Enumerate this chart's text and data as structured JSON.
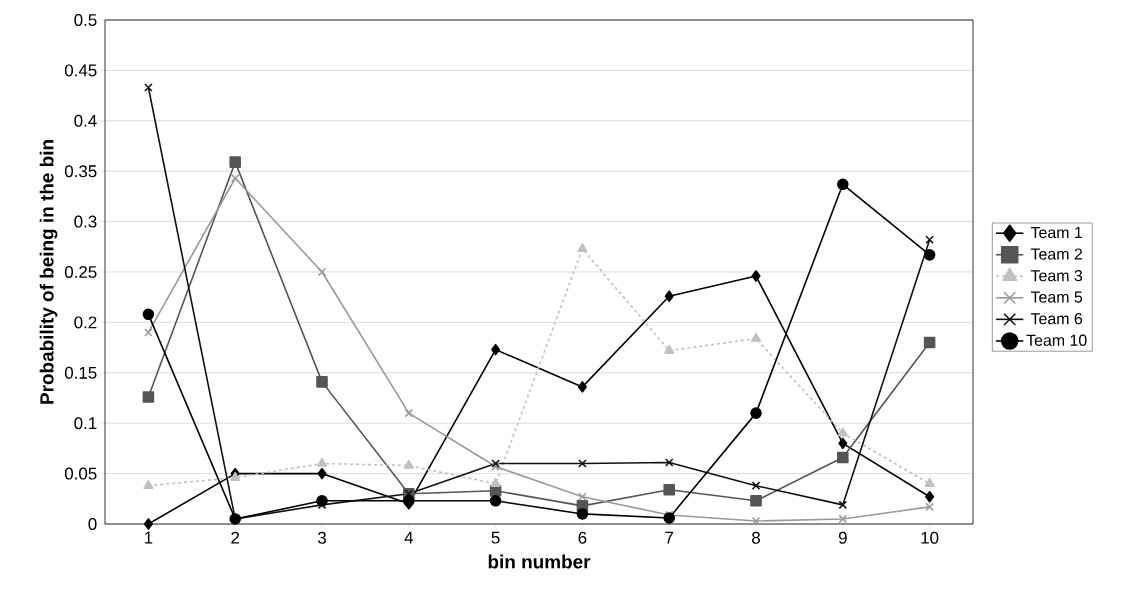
{
  "chart_data": {
    "type": "line",
    "xlabel": "bin number",
    "ylabel": "Probability of being in the bin",
    "categories": [
      "1",
      "2",
      "3",
      "4",
      "5",
      "6",
      "7",
      "8",
      "9",
      "10"
    ],
    "ylim": [
      0,
      0.5
    ],
    "yticks": [
      0,
      0.05,
      0.1,
      0.15,
      0.2,
      0.25,
      0.3,
      0.35,
      0.4,
      0.45,
      0.5
    ],
    "grid": "y",
    "legend": "right",
    "series": [
      {
        "name": "Team 1",
        "color": "#000000",
        "marker": "diamond",
        "line_style": "solid",
        "values": [
          0,
          0.05,
          0.05,
          0.02,
          0.173,
          0.136,
          0.226,
          0.246,
          0.08,
          0.027
        ]
      },
      {
        "name": "Team 2",
        "color": "#555555",
        "marker": "square",
        "line_style": "solid",
        "values": [
          0.126,
          0.359,
          0.141,
          0.03,
          0.033,
          0.018,
          0.034,
          0.023,
          0.066,
          0.18
        ]
      },
      {
        "name": "Team 3",
        "color": "#c0c0c0",
        "marker": "triangle",
        "line_style": "dashed",
        "values": [
          0.038,
          0.046,
          0.06,
          0.058,
          0.04,
          0.273,
          0.172,
          0.184,
          0.09,
          0.04
        ]
      },
      {
        "name": "Team 5",
        "color": "#999999",
        "marker": "cross",
        "line_style": "solid",
        "values": [
          0.19,
          0.343,
          0.25,
          0.11,
          0.057,
          0.027,
          0.009,
          0.003,
          0.005,
          0.017
        ]
      },
      {
        "name": "Team 6",
        "color": "#111111",
        "marker": "cross",
        "line_style": "solid",
        "values": [
          0.433,
          0.005,
          0.019,
          0.03,
          0.06,
          0.06,
          0.061,
          0.038,
          0.019,
          0.282
        ]
      },
      {
        "name": "Team 10",
        "color": "#000000",
        "marker": "circle",
        "line_style": "solid",
        "values": [
          0.208,
          0.005,
          0.023,
          0.023,
          0.023,
          0.01,
          0.006,
          0.11,
          0.337,
          0.267
        ]
      }
    ]
  }
}
